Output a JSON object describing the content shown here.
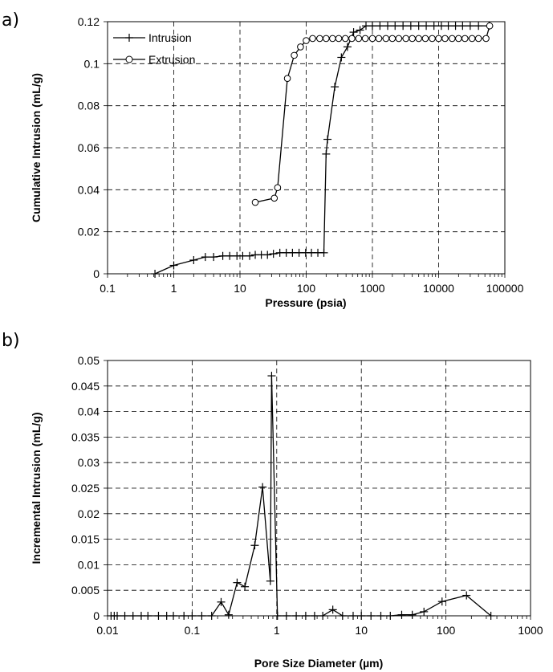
{
  "chart_data": [
    {
      "panel_label": "a)",
      "type": "line",
      "xlabel": "Pressure (psia)",
      "ylabel": "Cumulative Intrusion (mL/g)",
      "xscale": "log",
      "xlim": [
        0.1,
        100000
      ],
      "ylim": [
        0,
        0.12
      ],
      "x_ticks": [
        "0.1",
        "1",
        "10",
        "100",
        "1000",
        "10000",
        "100000"
      ],
      "y_ticks": [
        "0",
        "0.02",
        "0.04",
        "0.06",
        "0.08",
        "0.1",
        "0.12"
      ],
      "grid": true,
      "legend_position": "top-left",
      "series": [
        {
          "name": "Intrusion",
          "marker": "plus",
          "points": [
            [
              0.52,
              0.0
            ],
            [
              1.0,
              0.004
            ],
            [
              2.0,
              0.0065
            ],
            [
              3.0,
              0.008
            ],
            [
              4.0,
              0.008
            ],
            [
              5.5,
              0.0085
            ],
            [
              7.0,
              0.0085
            ],
            [
              9.0,
              0.0085
            ],
            [
              11.0,
              0.0085
            ],
            [
              14.0,
              0.0085
            ],
            [
              17.0,
              0.009
            ],
            [
              21.0,
              0.009
            ],
            [
              26.0,
              0.009
            ],
            [
              32.0,
              0.0095
            ],
            [
              40.0,
              0.01
            ],
            [
              50.0,
              0.01
            ],
            [
              62.0,
              0.01
            ],
            [
              78.0,
              0.01
            ],
            [
              98.0,
              0.01
            ],
            [
              120.0,
              0.01
            ],
            [
              150.0,
              0.01
            ],
            [
              185.0,
              0.01
            ],
            [
              200.0,
              0.057
            ],
            [
              210.0,
              0.064
            ],
            [
              270.0,
              0.089
            ],
            [
              340.0,
              0.103
            ],
            [
              420.0,
              0.108
            ],
            [
              520.0,
              0.115
            ],
            [
              650.0,
              0.116
            ],
            [
              800.0,
              0.118
            ],
            [
              1000.0,
              0.118
            ],
            [
              1300.0,
              0.118
            ],
            [
              1700.0,
              0.118
            ],
            [
              2200.0,
              0.118
            ],
            [
              2900.0,
              0.118
            ],
            [
              3800.0,
              0.118
            ],
            [
              5000.0,
              0.118
            ],
            [
              6500.0,
              0.118
            ],
            [
              8500.0,
              0.118
            ],
            [
              11000.0,
              0.118
            ],
            [
              14000.0,
              0.118
            ],
            [
              18000.0,
              0.118
            ],
            [
              23000.0,
              0.118
            ],
            [
              30000.0,
              0.118
            ],
            [
              40000.0,
              0.118
            ],
            [
              58000.0,
              0.118
            ]
          ]
        },
        {
          "name": "Extrusion",
          "marker": "circle",
          "points": [
            [
              17.0,
              0.034
            ],
            [
              33.0,
              0.036
            ],
            [
              37.0,
              0.041
            ],
            [
              52.0,
              0.093
            ],
            [
              66.0,
              0.104
            ],
            [
              82.0,
              0.108
            ],
            [
              100.0,
              0.111
            ],
            [
              125.0,
              0.112
            ],
            [
              160.0,
              0.112
            ],
            [
              200.0,
              0.112
            ],
            [
              250.0,
              0.112
            ],
            [
              310.0,
              0.112
            ],
            [
              390.0,
              0.112
            ],
            [
              490.0,
              0.112
            ],
            [
              620.0,
              0.112
            ],
            [
              780.0,
              0.112
            ],
            [
              1000.0,
              0.112
            ],
            [
              1250.0,
              0.112
            ],
            [
              1600.0,
              0.112
            ],
            [
              2000.0,
              0.112
            ],
            [
              2500.0,
              0.112
            ],
            [
              3200.0,
              0.112
            ],
            [
              4000.0,
              0.112
            ],
            [
              5000.0,
              0.112
            ],
            [
              6300.0,
              0.112
            ],
            [
              8000.0,
              0.112
            ],
            [
              10000.0,
              0.112
            ],
            [
              12500.0,
              0.112
            ],
            [
              16000.0,
              0.112
            ],
            [
              20000.0,
              0.112
            ],
            [
              25000.0,
              0.112
            ],
            [
              32000.0,
              0.112
            ],
            [
              40000.0,
              0.112
            ],
            [
              52000.0,
              0.112
            ],
            [
              59000.0,
              0.118
            ]
          ]
        }
      ]
    },
    {
      "panel_label": "b)",
      "type": "line",
      "xlabel": "Pore Size Diameter (µm)",
      "ylabel": "Incremental Intrusion (mL/g)",
      "xscale": "log",
      "xlim": [
        0.01,
        1000
      ],
      "ylim": [
        0,
        0.05
      ],
      "x_ticks": [
        "0.01",
        "0.1",
        "1",
        "10",
        "100",
        "1000"
      ],
      "y_ticks": [
        "0",
        "0.005",
        "0.01",
        "0.015",
        "0.02",
        "0.025",
        "0.03",
        "0.035",
        "0.04",
        "0.045",
        "0.05"
      ],
      "grid": true,
      "series": [
        {
          "name": "",
          "marker": "plus",
          "points": [
            [
              0.011,
              0.0
            ],
            [
              0.012,
              0.0
            ],
            [
              0.013,
              0.0
            ],
            [
              0.016,
              0.0
            ],
            [
              0.02,
              0.0
            ],
            [
              0.025,
              0.0
            ],
            [
              0.03,
              0.0
            ],
            [
              0.04,
              0.0
            ],
            [
              0.05,
              0.0
            ],
            [
              0.06,
              0.0
            ],
            [
              0.08,
              0.0
            ],
            [
              0.1,
              0.0
            ],
            [
              0.13,
              0.0
            ],
            [
              0.17,
              0.0
            ],
            [
              0.22,
              0.0027
            ],
            [
              0.27,
              0.0002
            ],
            [
              0.34,
              0.0065
            ],
            [
              0.42,
              0.0057
            ],
            [
              0.55,
              0.0138
            ],
            [
              0.68,
              0.0252
            ],
            [
              0.84,
              0.0068
            ],
            [
              0.87,
              0.047
            ],
            [
              1.02,
              0.0
            ],
            [
              1.3,
              0.0
            ],
            [
              1.7,
              0.0
            ],
            [
              2.2,
              0.0
            ],
            [
              2.8,
              0.0
            ],
            [
              3.5,
              0.0
            ],
            [
              4.6,
              0.0012
            ],
            [
              6.0,
              0.0
            ],
            [
              8.0,
              0.0
            ],
            [
              10.0,
              0.0
            ],
            [
              13.0,
              0.0
            ],
            [
              17.0,
              0.0
            ],
            [
              22.0,
              0.0
            ],
            [
              30.0,
              0.0002
            ],
            [
              40.0,
              0.0002
            ],
            [
              55.0,
              0.0008
            ],
            [
              90.0,
              0.0028
            ],
            [
              175.0,
              0.004
            ],
            [
              340.0,
              0.0
            ]
          ]
        }
      ]
    }
  ]
}
